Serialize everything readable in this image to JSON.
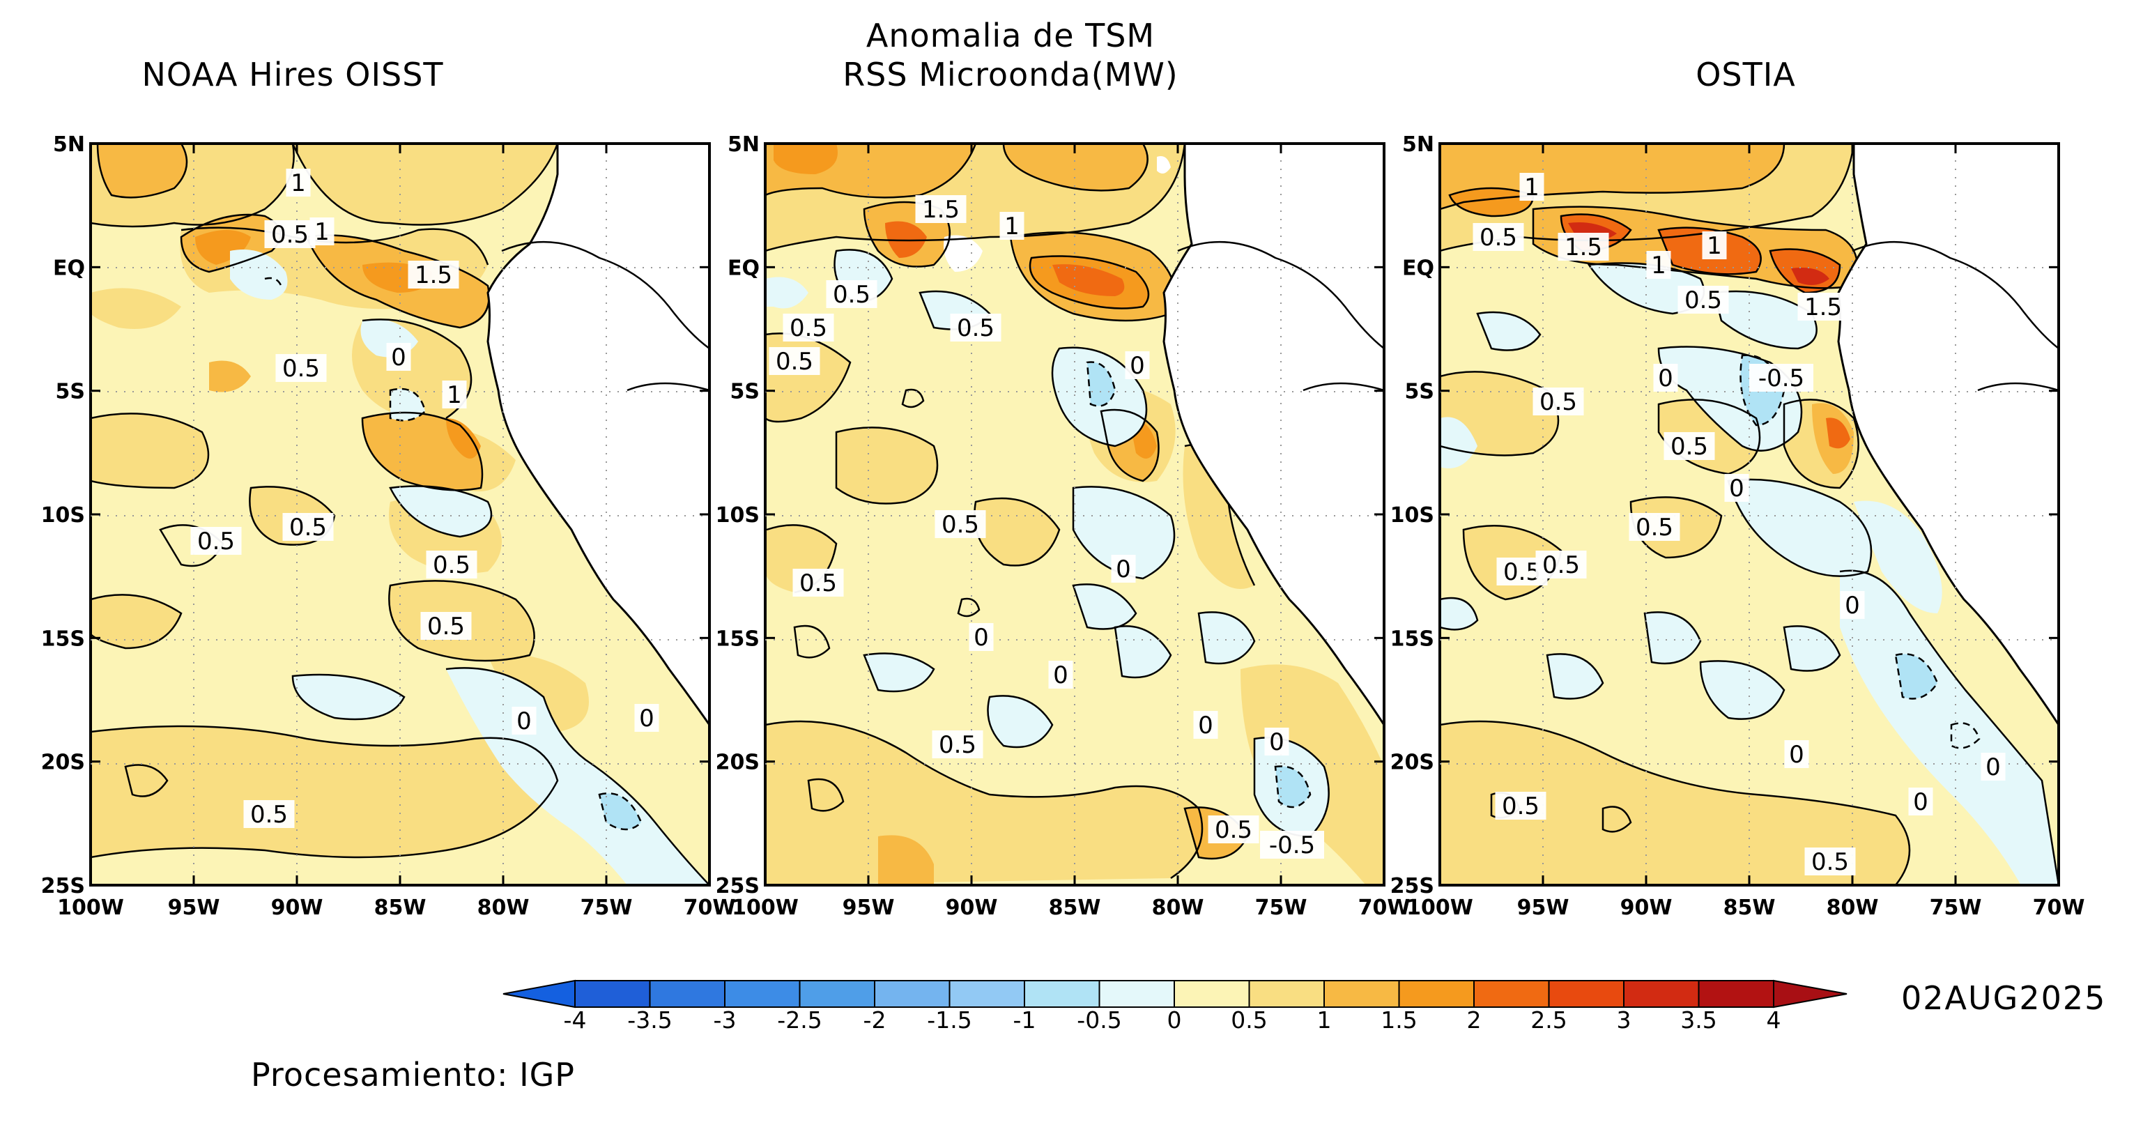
{
  "header": {
    "main_title_line1": "Anomalia de TSM",
    "panel_titles": [
      "NOAA Hires OISST",
      "RSS Microonda(MW)",
      "OSTIA"
    ]
  },
  "axes": {
    "lat_labels": [
      "5N",
      "EQ",
      "5S",
      "10S",
      "15S",
      "20S",
      "25S"
    ],
    "lon_labels": [
      "100W",
      "95W",
      "90W",
      "85W",
      "80W",
      "75W",
      "70W"
    ]
  },
  "contour_labels": {
    "p1": [
      "1",
      "0.5",
      "1",
      "1.5",
      "0.5",
      "0",
      "1",
      "0.5",
      "0.5",
      "0.5",
      "0.5",
      "0",
      "0",
      "0.5"
    ],
    "p2": [
      "1.5",
      "1",
      "0.5",
      "0.5",
      "0.5",
      "0.5",
      "0",
      "0.5",
      "0.5",
      "0",
      "0",
      "0",
      "0",
      "0.5",
      "0",
      "0.5",
      "-0.5"
    ],
    "p3": [
      "1",
      "0.5",
      "1.5",
      "1",
      "1",
      "0.5",
      "1.5",
      "0",
      "-0.5",
      "0.5",
      "0.5",
      "0",
      "0.5",
      "0.5",
      "0.5",
      "0",
      "0",
      "0",
      "0.5",
      "0",
      "0.5"
    ]
  },
  "colorbar": {
    "levels": [
      "-4",
      "-3.5",
      "-3",
      "-2.5",
      "-2",
      "-1.5",
      "-1",
      "-0.5",
      "0",
      "0.5",
      "1",
      "1.5",
      "2",
      "2.5",
      "3",
      "3.5",
      "4"
    ],
    "colors": [
      "#1f5fd8",
      "#2f78e0",
      "#3d8ce6",
      "#4f9ee8",
      "#74b4ef",
      "#92c9f4",
      "#b0e3f5",
      "#e4f8fa",
      "#fcf4b6",
      "#f9de82",
      "#f7b944",
      "#f59a1e",
      "#f06a12",
      "#e84a0f",
      "#d22b12",
      "#b21212"
    ],
    "low_arrow_color": "#1460e0",
    "high_arrow_color": "#a80f14"
  },
  "date": "02AUG2025",
  "footer": "Procesamiento: IGP"
}
